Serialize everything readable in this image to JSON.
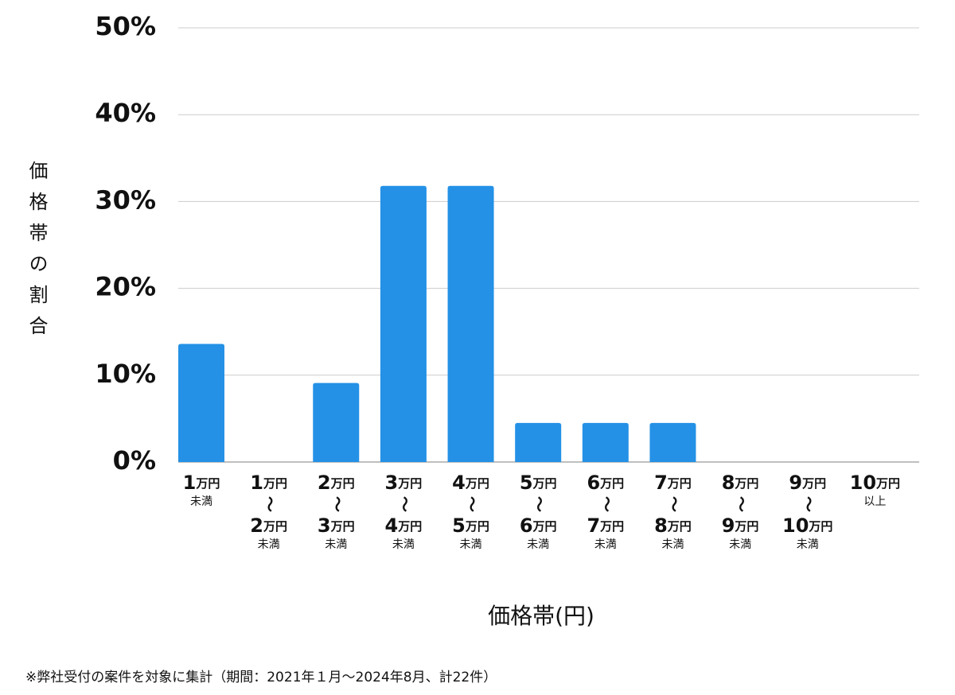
{
  "chart_data": {
    "type": "bar",
    "y_label": "価格帯の割合",
    "x_label": "価格帯(円)",
    "footnote": "※弊社受付の案件を対象に集計（期間：2021年１月〜2024年8月、計22件）",
    "categories": [
      [
        "1万円",
        "未満"
      ],
      [
        "1万円",
        "〜",
        "2万円",
        "未満"
      ],
      [
        "2万円",
        "〜",
        "3万円",
        "未満"
      ],
      [
        "3万円",
        "〜",
        "4万円",
        "未満"
      ],
      [
        "4万円",
        "〜",
        "5万円",
        "未満"
      ],
      [
        "5万円",
        "〜",
        "6万円",
        "未満"
      ],
      [
        "6万円",
        "〜",
        "7万円",
        "未満"
      ],
      [
        "7万円",
        "〜",
        "8万円",
        "未満"
      ],
      [
        "8万円",
        "〜",
        "9万円",
        "未満"
      ],
      [
        "9万円",
        "〜",
        "10万円",
        "未満"
      ],
      [
        "10万円",
        "以上"
      ]
    ],
    "values": [
      13.6,
      0,
      9.1,
      31.8,
      31.8,
      4.5,
      4.5,
      4.5,
      0,
      0,
      0
    ],
    "color": "#2491e6",
    "ylim": [
      0,
      50
    ],
    "yticks": [
      {
        "value": 0,
        "label": "0%"
      },
      {
        "value": 10,
        "label": "10%"
      },
      {
        "value": 20,
        "label": "20%"
      },
      {
        "value": 30,
        "label": "30%"
      },
      {
        "value": 40,
        "label": "40%"
      },
      {
        "value": 50,
        "label": "50%"
      }
    ],
    "grid": true
  }
}
